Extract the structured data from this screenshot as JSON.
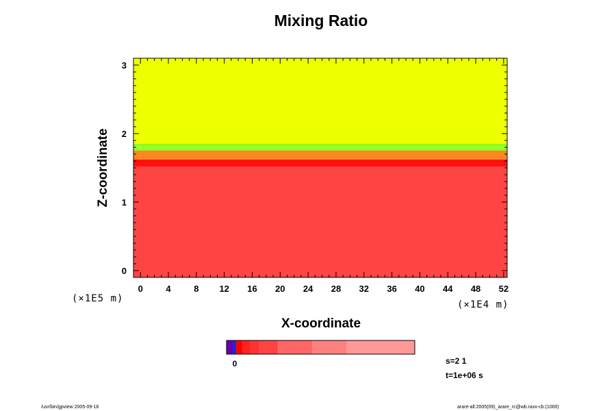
{
  "chart_data": {
    "type": "heatmap",
    "title": "Mixing Ratio",
    "xlabel": "X-coordinate",
    "ylabel": "Z-coordinate",
    "x_unit": "(×1E4 m)",
    "y_unit": "(×1E5 m)",
    "xlim": [
      -1,
      52.5
    ],
    "ylim": [
      -0.1,
      3.1
    ],
    "x_ticks": [
      0,
      4,
      8,
      12,
      16,
      20,
      24,
      28,
      32,
      36,
      40,
      44,
      48,
      52
    ],
    "x_tick_labels": [
      "0",
      "4",
      "8",
      "12",
      "16",
      "20",
      "24",
      "28",
      "32",
      "36",
      "40",
      "44",
      "48",
      "52"
    ],
    "y_ticks": [
      0,
      1,
      2,
      3
    ],
    "y_tick_labels": [
      "0",
      "1",
      "2",
      "3"
    ],
    "regions": [
      {
        "name": "upper",
        "z_from": 1.85,
        "z_to": 3.1,
        "color": "#eeff00"
      },
      {
        "name": "transition-green",
        "z_from": 1.75,
        "z_to": 1.85,
        "color": "#88ff22"
      },
      {
        "name": "transition-orange",
        "z_from": 1.62,
        "z_to": 1.75,
        "color": "#ff8822"
      },
      {
        "name": "boundary-red",
        "z_from": 1.52,
        "z_to": 1.62,
        "color": "#ff1010"
      },
      {
        "name": "lower",
        "z_from": -0.1,
        "z_to": 1.52,
        "color": "#ff4444"
      }
    ],
    "colorbar": {
      "zero_label": "0",
      "segments": [
        {
          "color": "#6600aa",
          "weight": 1
        },
        {
          "color": "#2222dd",
          "weight": 0.5
        },
        {
          "color": "#ff0000",
          "weight": 1
        },
        {
          "color": "#ff2222",
          "weight": 1.2
        },
        {
          "color": "#ff3333",
          "weight": 1.5
        },
        {
          "color": "#ff4444",
          "weight": 3
        },
        {
          "color": "#ff6666",
          "weight": 5.5
        },
        {
          "color": "#ff8080",
          "weight": 5.5
        },
        {
          "color": "#ff9999",
          "weight": 11
        }
      ]
    },
    "grid": false,
    "legend": "bottom-center colorbar"
  },
  "info": {
    "s_label": "s=2 1",
    "t_label": "t=1e+06 s"
  },
  "footer": {
    "left": "/usr/bin/gpview 2005-09-16",
    "right": "arare-all:2005(09)_arare_rc@wb.raxx-cb:(1000)"
  }
}
